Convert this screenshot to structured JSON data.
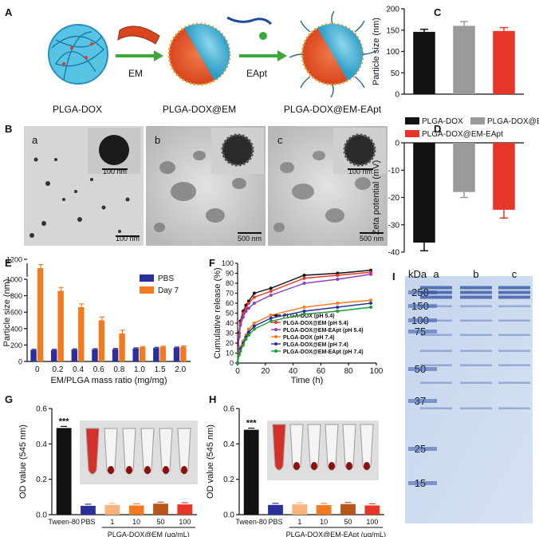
{
  "panels": {
    "A": {
      "label": "A",
      "stages": [
        "PLGA-DOX",
        "PLGA-DOX@EM",
        "PLGA-DOX@EM-EApt"
      ],
      "arrows": [
        "EM",
        "EApt"
      ]
    },
    "B": {
      "label": "B",
      "subs": [
        {
          "letter": "a",
          "inset_scale": "100 nm",
          "scale": "100 nm"
        },
        {
          "letter": "b",
          "inset_scale": "",
          "scale": "500 nm"
        },
        {
          "letter": "c",
          "inset_scale": "100 nm",
          "scale": "500 nm"
        }
      ]
    },
    "C": {
      "label": "C"
    },
    "D": {
      "label": "D"
    },
    "E": {
      "label": "E"
    },
    "F": {
      "label": "F"
    },
    "G": {
      "label": "G"
    },
    "H": {
      "label": "H"
    },
    "I": {
      "label": "I",
      "unit": "kDa",
      "lanes": [
        "a",
        "b",
        "c"
      ],
      "markers": [
        "250",
        "150",
        "100",
        "75",
        "50",
        "37",
        "25",
        "15"
      ]
    }
  },
  "legend_CD": [
    "PLGA-DOX",
    "PLGA-DOX@EM",
    "PLGA-DOX@EM-EApt"
  ],
  "colors": {
    "black": "#111111",
    "gray": "#9a9a9a",
    "red": "#e8352a",
    "blue": "#2b2f9e",
    "orange": "#f47a20",
    "purple": "#8a3fbf",
    "green": "#1f9a3a",
    "gel": "#c9d9ef"
  },
  "chart_data": [
    {
      "id": "C",
      "type": "bar",
      "categories": [
        "PLGA-DOX",
        "PLGA-DOX@EM",
        "PLGA-DOX@EM-EApt"
      ],
      "values": [
        146,
        160,
        148
      ],
      "errors": [
        6,
        10,
        8
      ],
      "ylabel": "Particle size (nm)",
      "ylim": [
        0,
        200
      ],
      "yticks": [
        "0",
        "50",
        "100",
        "150",
        "200"
      ]
    },
    {
      "id": "D",
      "type": "bar",
      "categories": [
        "PLGA-DOX",
        "PLGA-DOX@EM",
        "PLGA-DOX@EM-EApt"
      ],
      "values": [
        -36.5,
        -18,
        -24.5
      ],
      "errors": [
        3,
        2,
        3
      ],
      "ylabel": "Zeta potential (mV)",
      "ylim": [
        -40,
        0
      ],
      "yticks": [
        "0",
        "-10",
        "-20",
        "-30",
        "-40"
      ]
    },
    {
      "id": "E",
      "type": "bar",
      "categories": [
        "0",
        "0.2",
        "0.4",
        "0.6",
        "0.8",
        "1.0",
        "1.5",
        "2.0"
      ],
      "series": [
        {
          "name": "PBS",
          "values": [
            140,
            140,
            145,
            148,
            150,
            158,
            163,
            168
          ]
        },
        {
          "name": "Day 7",
          "values": [
            1100,
            860,
            660,
            500,
            340,
            175,
            178,
            180
          ]
        }
      ],
      "xlabel": "EM/PLGA mass ratio (mg/mg)",
      "ylabel": "Particle size (nm)",
      "yticks": [
        "0",
        "200",
        "400",
        "600",
        "800",
        "1000",
        "1200"
      ]
    },
    {
      "id": "F",
      "type": "line",
      "x": [
        0,
        1,
        2,
        4,
        6,
        8,
        12,
        24,
        48,
        72,
        96
      ],
      "series": [
        {
          "name": "PLGA-DOX (pH 5.4)",
          "values": [
            0,
            30,
            42,
            52,
            58,
            62,
            70,
            75,
            88,
            90,
            93
          ]
        },
        {
          "name": "PLGA-DOX@EM (pH 5.4)",
          "values": [
            0,
            28,
            40,
            50,
            55,
            60,
            66,
            72,
            85,
            88,
            91
          ]
        },
        {
          "name": "PLGA-DOX@EM-EApt (pH 5.4)",
          "values": [
            0,
            26,
            38,
            46,
            52,
            55,
            60,
            68,
            80,
            84,
            89
          ]
        },
        {
          "name": "PLGA-DOX (pH 7.4)",
          "values": [
            0,
            10,
            16,
            22,
            28,
            34,
            40,
            48,
            56,
            60,
            63
          ]
        },
        {
          "name": "PLGA-DOX@EM (pH 7.4)",
          "values": [
            0,
            9,
            14,
            20,
            26,
            31,
            37,
            45,
            52,
            56,
            60
          ]
        },
        {
          "name": "PLGA-DOX@EM-EApt (pH 7.4)",
          "values": [
            0,
            8,
            12,
            18,
            24,
            28,
            34,
            42,
            49,
            52,
            56
          ]
        }
      ],
      "xlabel": "Time (h)",
      "ylabel": "Cumulative release (%)",
      "xlim": [
        0,
        100
      ],
      "ylim": [
        0,
        100
      ],
      "xticks": [
        "0",
        "20",
        "40",
        "60",
        "80",
        "100"
      ],
      "yticks": [
        "0",
        "10",
        "20",
        "30",
        "40",
        "50",
        "60",
        "70",
        "80",
        "90",
        "100"
      ]
    },
    {
      "id": "G",
      "type": "bar",
      "categories": [
        "Tween-80",
        "PBS",
        "1",
        "10",
        "50",
        "100"
      ],
      "values": [
        0.49,
        0.05,
        0.055,
        0.052,
        0.062,
        0.058
      ],
      "group_label": "PLGA-DOX@EM (μg/mL)",
      "ylabel": "OD value (545 nm)",
      "ylim": [
        0,
        0.6
      ],
      "yticks": [
        "0.0",
        "0.2",
        "0.4",
        "0.6"
      ],
      "annotation": "***"
    },
    {
      "id": "H",
      "type": "bar",
      "categories": [
        "Tween-80",
        "PBS",
        "1",
        "10",
        "50",
        "100"
      ],
      "values": [
        0.48,
        0.055,
        0.058,
        0.054,
        0.06,
        0.052
      ],
      "group_label": "PLGA-DOX@EM-EApt (μg/mL)",
      "ylabel": "OD value (545 nm)",
      "ylim": [
        0,
        0.6
      ],
      "yticks": [
        "0.0",
        "0.2",
        "0.4",
        "0.6"
      ],
      "annotation": "***"
    }
  ]
}
